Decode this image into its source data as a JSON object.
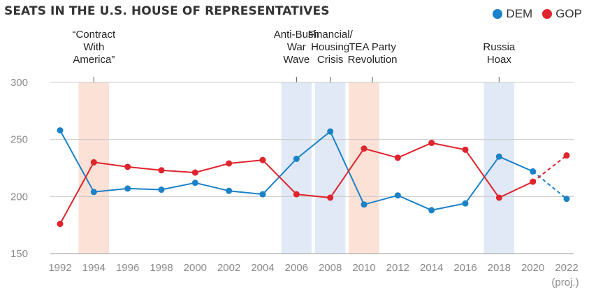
{
  "chart_data": {
    "type": "line",
    "title": "SEATS IN THE U.S. HOUSE OF REPRESENTATIVES",
    "x": [
      1992,
      1994,
      1996,
      1998,
      2000,
      2002,
      2004,
      2006,
      2008,
      2010,
      2012,
      2014,
      2016,
      2018,
      2020,
      2022
    ],
    "x_tick_labels": [
      "1992",
      "1994",
      "1996",
      "1998",
      "2000",
      "2002",
      "2004",
      "2006",
      "2008",
      "2010",
      "2012",
      "2014",
      "2016",
      "2018",
      "2020",
      "2022"
    ],
    "x_note": "(proj.)",
    "y_ticks": [
      150,
      200,
      250,
      300
    ],
    "ylim": [
      150,
      300
    ],
    "xlim": [
      1992,
      2022
    ],
    "grid": "horizontal",
    "legend_position": "top-right",
    "series": [
      {
        "name": "DEM",
        "color": "#1a82c8",
        "values": [
          258,
          204,
          207,
          206,
          212,
          205,
          202,
          233,
          257,
          193,
          201,
          188,
          194,
          235,
          222,
          198
        ],
        "projected_from": 2020
      },
      {
        "name": "GOP",
        "color": "#e0232c",
        "values": [
          176,
          230,
          226,
          223,
          221,
          229,
          232,
          202,
          199,
          242,
          234,
          247,
          241,
          199,
          213,
          236
        ],
        "projected_from": 2020
      }
    ],
    "annotations": [
      {
        "lines": [
          "“Contract",
          "With",
          "America”"
        ],
        "start": 1993.1,
        "end": 1994.9,
        "color": "#fbe1d6",
        "label_x": 1994
      },
      {
        "lines": [
          "Anti-Bush",
          "War",
          "Wave"
        ],
        "start": 2005.1,
        "end": 2006.9,
        "color": "#e2e9f6",
        "label_x": 2006
      },
      {
        "lines": [
          "Financial/",
          "Housing",
          "Crisis"
        ],
        "start": 2007.1,
        "end": 2008.9,
        "color": "#e2e9f6",
        "label_x": 2008
      },
      {
        "lines": [
          "TEA Party",
          "Revolution"
        ],
        "start": 2009.1,
        "end": 2010.9,
        "color": "#fbe1d6",
        "label_x": 2010.5
      },
      {
        "lines": [
          "Russia",
          "Hoax"
        ],
        "start": 2017.1,
        "end": 2018.9,
        "color": "#e2e9f6",
        "label_x": 2018
      }
    ]
  }
}
